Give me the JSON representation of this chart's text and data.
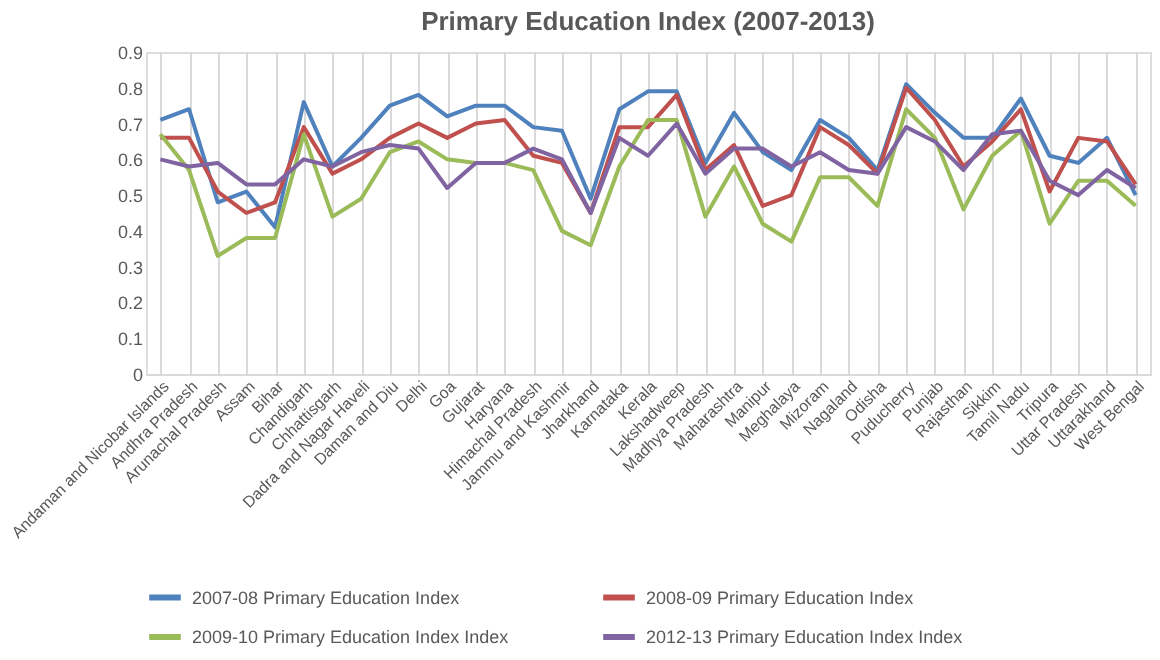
{
  "chart_data": {
    "type": "line",
    "title": "Primary Education Index (2007-2013)",
    "categories": [
      "Andaman and Nicobar Islands",
      "Andhra Pradesh",
      "Arunachal Pradesh",
      "Assam",
      "Bihar",
      "Chandigarh",
      "Chhattisgarh",
      "Dadra and Nagar Haveli",
      "Daman and Diu",
      "Delhi",
      "Goa",
      "Gujarat",
      "Haryana",
      "Himachal Pradesh",
      "Jammu and Kashmir",
      "Jharkhand",
      "Karnataka",
      "Kerala",
      "Lakshadweep",
      "Madhya Pradesh",
      "Maharashtra",
      "Manipur",
      "Meghalaya",
      "Mizoram",
      "Nagaland",
      "Odisha",
      "Puducherry",
      "Punjab",
      "Rajasthan",
      "Sikkim",
      "Tamil Nadu",
      "Tripura",
      "Uttar Pradesh",
      "Uttarakhand",
      "West Bengal"
    ],
    "series": [
      {
        "name": "2007-08 Primary Education Index",
        "color": "#4f81bd",
        "values": [
          0.71,
          0.74,
          0.48,
          0.51,
          0.41,
          0.76,
          0.58,
          0.66,
          0.75,
          0.78,
          0.72,
          0.75,
          0.75,
          0.69,
          0.68,
          0.49,
          0.74,
          0.79,
          0.79,
          0.59,
          0.73,
          0.62,
          0.57,
          0.71,
          0.66,
          0.57,
          0.81,
          0.73,
          0.66,
          0.66,
          0.77,
          0.61,
          0.59,
          0.66,
          0.5
        ]
      },
      {
        "name": "2008-09 Primary Education Index",
        "color": "#c0504d",
        "values": [
          0.66,
          0.66,
          0.51,
          0.45,
          0.48,
          0.69,
          0.56,
          0.6,
          0.66,
          0.7,
          0.66,
          0.7,
          0.71,
          0.61,
          0.59,
          0.45,
          0.69,
          0.69,
          0.78,
          0.57,
          0.64,
          0.47,
          0.5,
          0.69,
          0.64,
          0.56,
          0.8,
          0.71,
          0.58,
          0.65,
          0.74,
          0.51,
          0.66,
          0.65,
          0.53
        ]
      },
      {
        "name": "2009-10 Primary Education Index Index",
        "color": "#9bbb59",
        "values": [
          0.67,
          0.57,
          0.33,
          0.38,
          0.38,
          0.67,
          0.44,
          0.49,
          0.62,
          0.65,
          0.6,
          0.59,
          0.59,
          0.57,
          0.4,
          0.36,
          0.58,
          0.71,
          0.71,
          0.44,
          0.58,
          0.42,
          0.37,
          0.55,
          0.55,
          0.47,
          0.74,
          0.66,
          0.46,
          0.61,
          0.68,
          0.42,
          0.54,
          0.54,
          0.47
        ]
      },
      {
        "name": "2012-13 Primary Education Index Index",
        "color": "#8064a2",
        "values": [
          0.6,
          0.58,
          0.59,
          0.53,
          0.53,
          0.6,
          0.58,
          0.62,
          0.64,
          0.63,
          0.52,
          0.59,
          0.59,
          0.63,
          0.6,
          0.45,
          0.66,
          0.61,
          0.7,
          0.56,
          0.63,
          0.63,
          0.58,
          0.62,
          0.57,
          0.56,
          0.69,
          0.65,
          0.57,
          0.67,
          0.68,
          0.54,
          0.5,
          0.57,
          0.52
        ]
      }
    ],
    "ylim": [
      0,
      0.9
    ],
    "yticks": [
      0,
      0.1,
      0.2,
      0.3,
      0.4,
      0.5,
      0.6,
      0.7,
      0.8,
      0.9
    ],
    "grid": "x",
    "legend": "bottom",
    "marker": "none",
    "line_style": "solid"
  }
}
